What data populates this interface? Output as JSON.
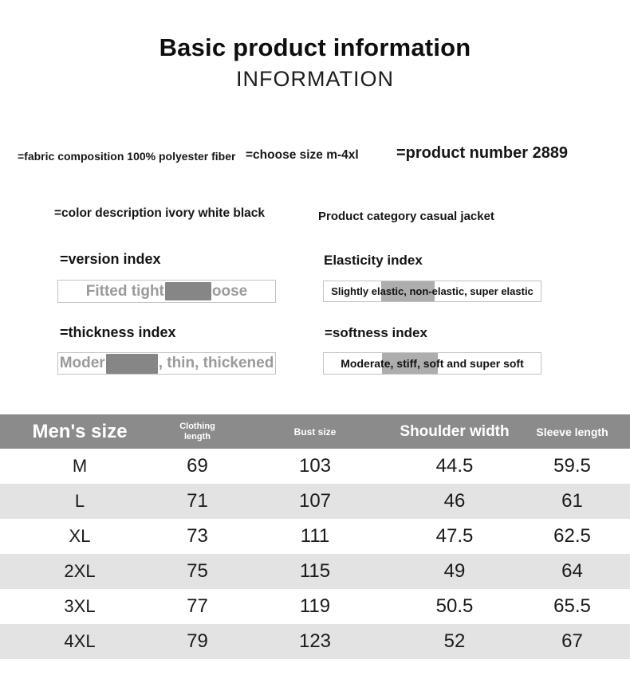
{
  "header": {
    "title": "Basic product information",
    "subtitle": "INFORMATION"
  },
  "info": {
    "fabric": "=fabric composition 100% polyester fiber",
    "choose_size": "=choose size m-4xl",
    "product_number": "=product number 2889",
    "color_description": "=color description ivory white black",
    "product_category": "Product category casual jacket"
  },
  "indices": {
    "version": {
      "label": "=version index",
      "value_before": "Fitted tight",
      "value_after": "oose",
      "redacted": "true"
    },
    "elasticity": {
      "label": "Elasticity index",
      "value": "Slightly elastic, non-elastic, super elastic"
    },
    "thickness": {
      "label": "=thickness index",
      "value_before": "Moder",
      "value_after": ", thin, thickened",
      "redacted": "true"
    },
    "softness": {
      "label": "=softness index",
      "value": "Moderate, stiff, soft and super soft"
    }
  },
  "size_table": {
    "columns": [
      "Men's size",
      "Clothing length",
      "Bust size",
      "Shoulder width",
      "Sleeve length"
    ],
    "rows": [
      {
        "size": "M",
        "clothing_length": "69",
        "bust": "103",
        "shoulder": "44.5",
        "sleeve": "59.5"
      },
      {
        "size": "L",
        "clothing_length": "71",
        "bust": "107",
        "shoulder": "46",
        "sleeve": "61"
      },
      {
        "size": "XL",
        "clothing_length": "73",
        "bust": "111",
        "shoulder": "47.5",
        "sleeve": "62.5"
      },
      {
        "size": "2XL",
        "clothing_length": "75",
        "bust": "115",
        "shoulder": "49",
        "sleeve": "64"
      },
      {
        "size": "3XL",
        "clothing_length": "77",
        "bust": "119",
        "shoulder": "50.5",
        "sleeve": "65.5"
      },
      {
        "size": "4XL",
        "clothing_length": "79",
        "bust": "123",
        "shoulder": "52",
        "sleeve": "67"
      }
    ]
  },
  "colors": {
    "table_header_bg": "#8b8b8b",
    "row_alt_bg": "#e3e3e3",
    "redaction_gray": "#868686",
    "muted_text": "#9a9a9a"
  }
}
